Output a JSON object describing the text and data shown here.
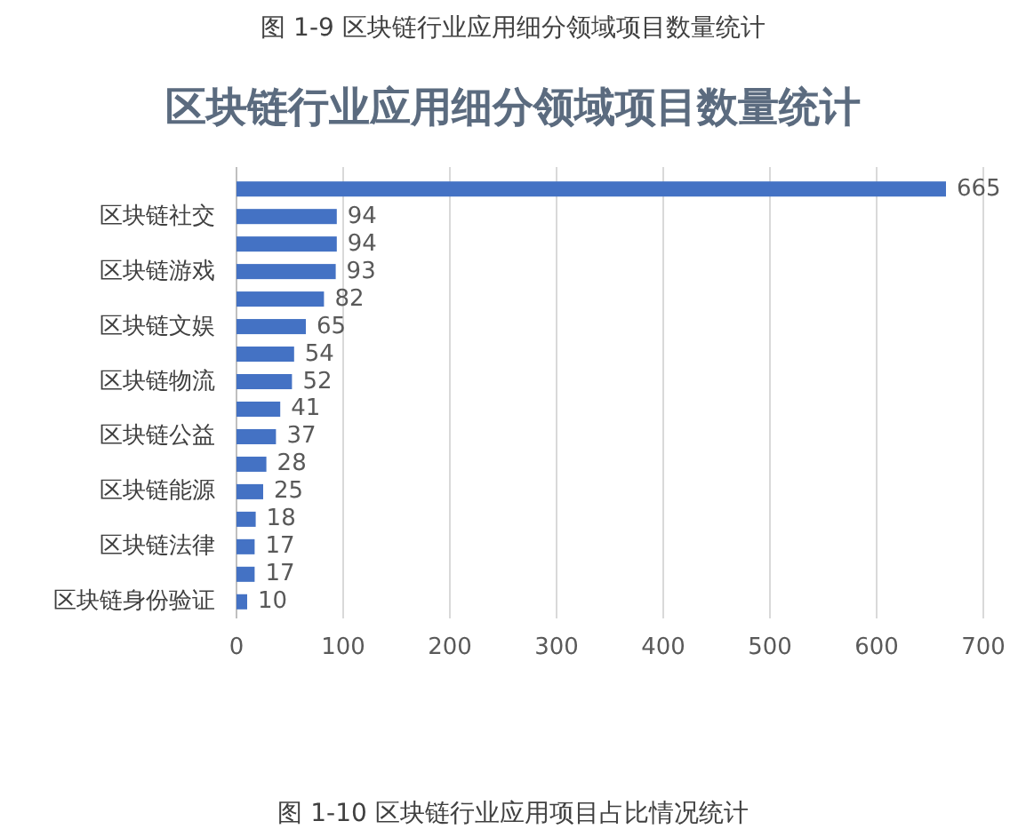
{
  "chart_data": {
    "type": "bar",
    "orientation": "horizontal",
    "title": "区块链行业应用细分领域项目数量统计",
    "annotations": [
      "图 1-9  区块链行业应用细分领域项目数量统计",
      "图 1-10  区块链行业应用项目占比情况统计"
    ],
    "categories": [
      null,
      "区块链社交",
      null,
      "区块链游戏",
      null,
      "区块链文娱",
      null,
      "区块链物流",
      null,
      "区块链公益",
      null,
      "区块链能源",
      null,
      "区块链法律",
      null,
      "区块链身份验证"
    ],
    "values": [
      665,
      94,
      94,
      93,
      82,
      65,
      54,
      52,
      41,
      37,
      28,
      25,
      18,
      17,
      17,
      10
    ],
    "color": "#4472c4",
    "data_labels": true,
    "xlim": [
      0,
      700
    ],
    "xticks": [
      0,
      100,
      200,
      300,
      400,
      500,
      600,
      700
    ],
    "grid": "x"
  }
}
